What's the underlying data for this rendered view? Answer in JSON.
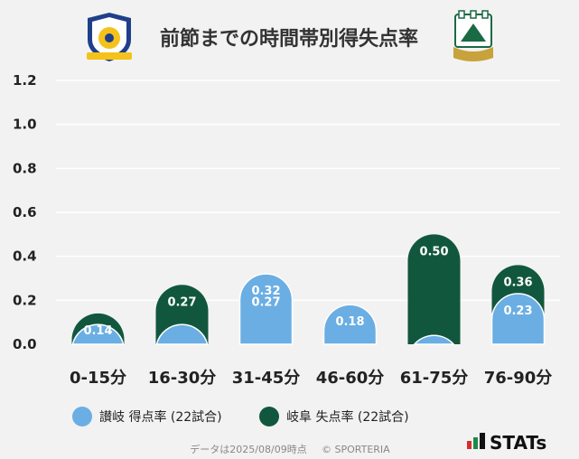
{
  "title": "前節までの時間帯別得失点率",
  "legend": {
    "series0": "讃岐 得点率 (22試合)",
    "series1": "岐阜 失点率 (22試合)"
  },
  "footer": {
    "date_note": "データは2025/08/09時点",
    "copyright": "© SPORTERIA"
  },
  "brand": "STATs",
  "logos": {
    "left": "Kamatamare Sanuki crest",
    "right": "FC Gifu crest",
    "right_text": "FC GIFU"
  },
  "colors": {
    "series0": "#6aaee3",
    "series1": "#11573e",
    "grid": "#ffffff"
  },
  "chart_data": {
    "type": "bar",
    "layout": "overlapping",
    "categories": [
      "0-15分",
      "16-30分",
      "31-45分",
      "46-60分",
      "61-75分",
      "76-90分"
    ],
    "series": [
      {
        "name": "讃岐 得点率 (22試合)",
        "values": [
          0.09,
          0.09,
          0.32,
          0.18,
          0.04,
          0.23
        ],
        "labels": [
          "",
          "",
          "0.32",
          "0.18",
          "",
          "0.23"
        ]
      },
      {
        "name": "岐阜 失点率 (22試合)",
        "values": [
          0.14,
          0.27,
          0.27,
          0.18,
          0.5,
          0.36
        ],
        "labels": [
          "0.14",
          "0.27",
          "0.27",
          "",
          "0.50",
          "0.36"
        ]
      }
    ],
    "yticks": [
      "0.0",
      "0.2",
      "0.4",
      "0.6",
      "0.8",
      "1.0",
      "1.2"
    ],
    "ylim": [
      0,
      1.2
    ],
    "grid": true,
    "legend_position": "bottom"
  }
}
